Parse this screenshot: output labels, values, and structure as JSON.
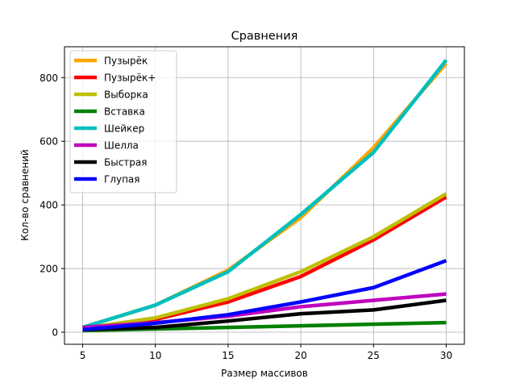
{
  "chart_data": {
    "type": "line",
    "title": "Сравнения",
    "xlabel": "Размер массивов",
    "ylabel": "Кол-во сравнений",
    "x": [
      5,
      10,
      15,
      20,
      25,
      30
    ],
    "xlim": [
      3.75,
      31.25
    ],
    "ylim": [
      -38,
      897
    ],
    "xticks": [
      5,
      10,
      15,
      20,
      25,
      30
    ],
    "yticks": [
      0,
      200,
      400,
      600,
      800
    ],
    "grid": true,
    "legend_position": "upper-left",
    "series": [
      {
        "name": "Пузырёк",
        "color": "#ffa500",
        "values": [
          15,
          85,
          195,
          360,
          580,
          845
        ]
      },
      {
        "name": "Пузырёк+",
        "color": "#ff0000",
        "values": [
          12,
          40,
          95,
          175,
          290,
          425
        ]
      },
      {
        "name": "Выборка",
        "color": "#bfbf00",
        "values": [
          12,
          45,
          105,
          190,
          300,
          435
        ]
      },
      {
        "name": "Вставка",
        "color": "#008000",
        "values": [
          5,
          10,
          15,
          20,
          25,
          30
        ]
      },
      {
        "name": "Шейкер",
        "color": "#00bfbf",
        "values": [
          15,
          85,
          190,
          370,
          565,
          855
        ]
      },
      {
        "name": "Шелла",
        "color": "#bf00bf",
        "values": [
          15,
          30,
          50,
          80,
          100,
          120
        ]
      },
      {
        "name": "Быстрая",
        "color": "#000000",
        "values": [
          8,
          15,
          35,
          58,
          70,
          100
        ]
      },
      {
        "name": "Глупая",
        "color": "#0000ff",
        "values": [
          8,
          28,
          55,
          95,
          140,
          225
        ]
      }
    ]
  }
}
